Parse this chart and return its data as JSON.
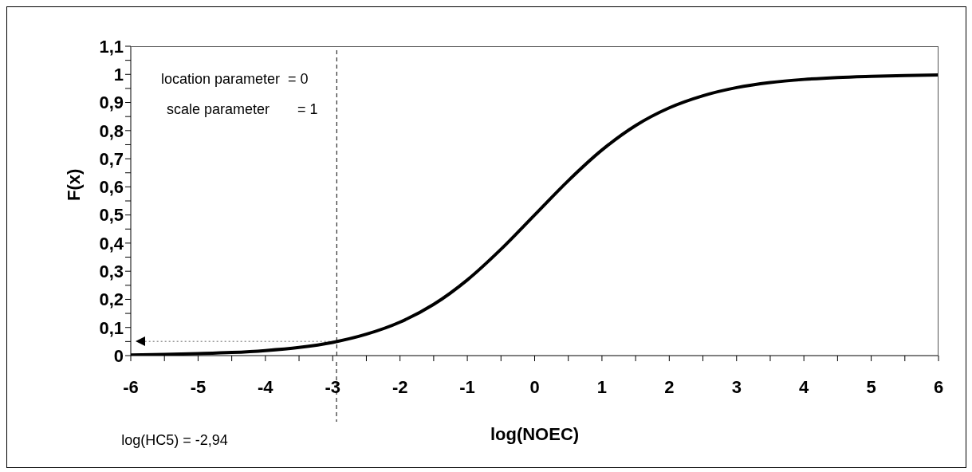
{
  "chart_data": {
    "type": "line",
    "xlabel": "log(NOEC)",
    "ylabel": "F(x)",
    "x": [
      -6,
      -5.5,
      -5,
      -4.5,
      -4,
      -3.5,
      -3,
      -2.5,
      -2,
      -1.5,
      -1,
      -0.5,
      0,
      0.5,
      1,
      1.5,
      2,
      2.5,
      3,
      3.5,
      4,
      4.5,
      5,
      5.5,
      6
    ],
    "series": [
      {
        "color": "#000000",
        "values": [
          0.002,
          0.004,
          0.007,
          0.011,
          0.018,
          0.029,
          0.047,
          0.076,
          0.119,
          0.182,
          0.269,
          0.378,
          0.5,
          0.622,
          0.731,
          0.818,
          0.881,
          0.924,
          0.953,
          0.971,
          0.982,
          0.989,
          0.993,
          0.996,
          0.998
        ]
      }
    ],
    "xlim": [
      -6,
      6
    ],
    "xticks": [
      -6,
      {
        "value": -5.5,
        "label": null
      },
      -5,
      {
        "value": -4.5,
        "label": null
      },
      -4,
      {
        "value": -3.5,
        "label": null
      },
      -3,
      {
        "value": -2.5,
        "label": null
      },
      -2,
      {
        "value": -1.5,
        "label": null
      },
      -1,
      {
        "value": -0.5,
        "label": null
      },
      0,
      {
        "value": 0.5,
        "label": null
      },
      1,
      {
        "value": 1.5,
        "label": null
      },
      2,
      {
        "value": 2.5,
        "label": null
      },
      3,
      {
        "value": 3.5,
        "label": null
      },
      4,
      {
        "value": 4.5,
        "label": null
      },
      5,
      {
        "value": 5.5,
        "label": null
      },
      6
    ],
    "ylim": [
      0,
      1.1
    ],
    "yticks": [
      0,
      {
        "value": 0.05,
        "label": null
      },
      {
        "value": 0.1,
        "label": "0,1"
      },
      {
        "value": 0.15,
        "label": null
      },
      {
        "value": 0.2,
        "label": "0,2"
      },
      {
        "value": 0.25,
        "label": null
      },
      {
        "value": 0.3,
        "label": "0,3"
      },
      {
        "value": 0.35,
        "label": null
      },
      {
        "value": 0.4,
        "label": "0,4"
      },
      {
        "value": 0.45,
        "label": null
      },
      {
        "value": 0.5,
        "label": "0,5"
      },
      {
        "value": 0.55,
        "label": null
      },
      {
        "value": 0.6,
        "label": "0,6"
      },
      {
        "value": 0.65,
        "label": null
      },
      {
        "value": 0.7,
        "label": "0,7"
      },
      {
        "value": 0.75,
        "label": null
      },
      {
        "value": 0.8,
        "label": "0,8"
      },
      {
        "value": 0.85,
        "label": null
      },
      {
        "value": 0.9,
        "label": "0,9"
      },
      {
        "value": 0.95,
        "label": null
      },
      1,
      {
        "value": 1.05,
        "label": null
      },
      {
        "value": 1.1,
        "label": "1,1"
      }
    ],
    "ref_lines": [
      {
        "axis": "x",
        "value": -2.94,
        "label": "log(HC5) = -2,94",
        "color": "#000000",
        "line_style": "dashed"
      },
      {
        "axis": "y",
        "value": 0.05,
        "color": "#999999",
        "line_style": "dotted"
      }
    ],
    "annotations": [
      "location parameter  = 0",
      "scale parameter       = 1"
    ],
    "marker": "none",
    "line_style": "solid"
  }
}
